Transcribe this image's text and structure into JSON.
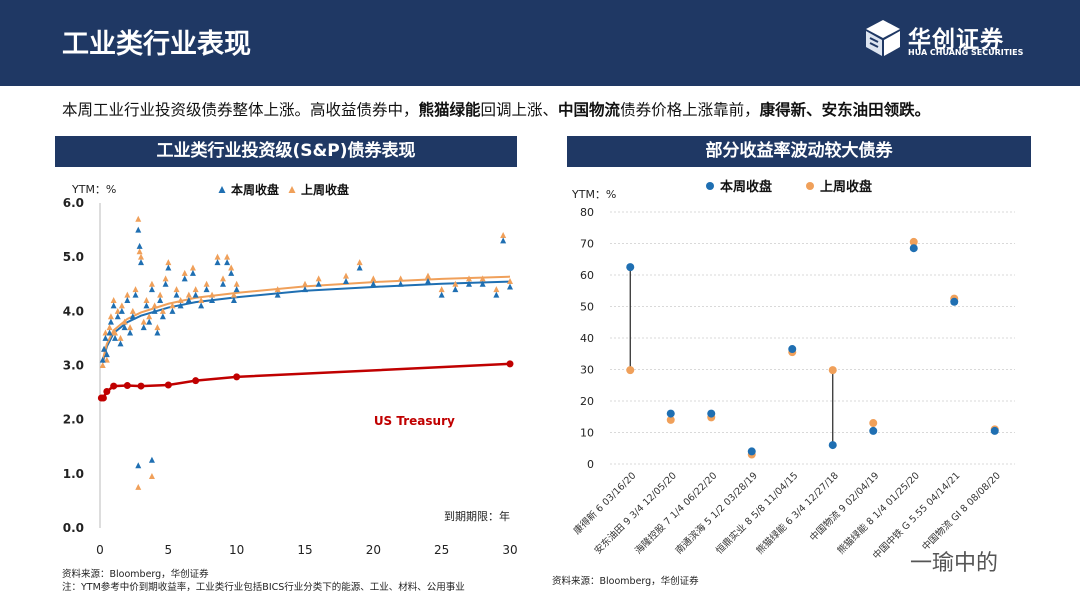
{
  "header": {
    "title": "工业类行业表现"
  },
  "logo": {
    "name_cn": "华创证券",
    "name_en": "HUA CHUANG SECURITIES"
  },
  "summary": {
    "p1": "本周工业行业投资级债券整体上涨。高收益债券中，",
    "b1": "熊猫绿能",
    "p2": "回调上涨、",
    "b2": "中国物流",
    "p3": "债券价格上涨靠前，",
    "b3": "康得新、安东油田领跌。"
  },
  "colors": {
    "header_bg": "#1f3864",
    "this_week": "#1f6fb2",
    "last_week": "#f0a05a",
    "treasury": "#c00000"
  },
  "chart_data": [
    {
      "type": "scatter",
      "title": "工业类行业投资级(S&P)债券表现",
      "ylabel": "YTM：%",
      "xlabel": "到期期限：年",
      "xlim": [
        0,
        30
      ],
      "ylim": [
        0,
        6
      ],
      "xticks": [
        "0",
        "5",
        "10",
        "15",
        "20",
        "25",
        "30"
      ],
      "yticks": [
        "0.0",
        "1.0",
        "2.0",
        "3.0",
        "4.0",
        "5.0",
        "6.0"
      ],
      "legend": [
        "本周收盘",
        "上周收盘"
      ],
      "annotation": "US Treasury",
      "series": [
        {
          "name": "本周收盘",
          "points": [
            [
              0.2,
              3.1
            ],
            [
              0.3,
              3.3
            ],
            [
              0.4,
              3.5
            ],
            [
              0.5,
              3.2
            ],
            [
              0.7,
              3.6
            ],
            [
              0.8,
              3.8
            ],
            [
              1.0,
              4.1
            ],
            [
              1.1,
              3.5
            ],
            [
              1.3,
              3.9
            ],
            [
              1.5,
              3.4
            ],
            [
              1.6,
              4.0
            ],
            [
              1.8,
              3.7
            ],
            [
              2.0,
              4.2
            ],
            [
              2.2,
              3.6
            ],
            [
              2.4,
              3.9
            ],
            [
              2.6,
              4.3
            ],
            [
              2.8,
              5.5
            ],
            [
              2.9,
              5.2
            ],
            [
              3.0,
              4.9
            ],
            [
              3.2,
              3.7
            ],
            [
              3.4,
              4.1
            ],
            [
              3.6,
              3.8
            ],
            [
              3.8,
              4.4
            ],
            [
              4.0,
              4.0
            ],
            [
              4.2,
              3.6
            ],
            [
              4.4,
              4.2
            ],
            [
              4.6,
              3.9
            ],
            [
              4.8,
              4.5
            ],
            [
              5.0,
              4.8
            ],
            [
              5.3,
              4.0
            ],
            [
              5.6,
              4.3
            ],
            [
              5.9,
              4.1
            ],
            [
              6.2,
              4.6
            ],
            [
              6.5,
              4.2
            ],
            [
              6.8,
              4.7
            ],
            [
              7.0,
              4.3
            ],
            [
              7.4,
              4.1
            ],
            [
              7.8,
              4.4
            ],
            [
              8.2,
              4.2
            ],
            [
              8.6,
              4.9
            ],
            [
              9.0,
              4.5
            ],
            [
              9.3,
              4.9
            ],
            [
              9.6,
              4.7
            ],
            [
              9.8,
              4.2
            ],
            [
              10.0,
              4.4
            ],
            [
              2.8,
              1.15
            ],
            [
              3.8,
              1.25
            ],
            [
              13,
              4.3
            ],
            [
              15,
              4.4
            ],
            [
              16,
              4.5
            ],
            [
              18,
              4.55
            ],
            [
              19,
              4.8
            ],
            [
              20,
              4.5
            ],
            [
              22,
              4.5
            ],
            [
              24,
              4.55
            ],
            [
              25,
              4.3
            ],
            [
              26,
              4.4
            ],
            [
              27,
              4.5
            ],
            [
              28,
              4.5
            ],
            [
              29,
              4.3
            ],
            [
              29.5,
              5.3
            ],
            [
              30,
              4.45
            ]
          ]
        },
        {
          "name": "上周收盘",
          "points": [
            [
              0.2,
              3.0
            ],
            [
              0.3,
              3.3
            ],
            [
              0.4,
              3.6
            ],
            [
              0.5,
              3.1
            ],
            [
              0.7,
              3.7
            ],
            [
              0.8,
              3.9
            ],
            [
              1.0,
              4.2
            ],
            [
              1.1,
              3.6
            ],
            [
              1.3,
              4.0
            ],
            [
              1.5,
              3.5
            ],
            [
              1.6,
              4.1
            ],
            [
              1.8,
              3.8
            ],
            [
              2.0,
              4.3
            ],
            [
              2.2,
              3.7
            ],
            [
              2.4,
              4.0
            ],
            [
              2.6,
              4.4
            ],
            [
              2.8,
              5.7
            ],
            [
              2.9,
              5.1
            ],
            [
              3.0,
              5.0
            ],
            [
              3.2,
              3.8
            ],
            [
              3.4,
              4.2
            ],
            [
              3.6,
              3.9
            ],
            [
              3.8,
              4.5
            ],
            [
              4.0,
              4.1
            ],
            [
              4.2,
              3.7
            ],
            [
              4.4,
              4.3
            ],
            [
              4.6,
              4.0
            ],
            [
              4.8,
              4.6
            ],
            [
              5.0,
              4.9
            ],
            [
              5.3,
              4.1
            ],
            [
              5.6,
              4.4
            ],
            [
              5.9,
              4.2
            ],
            [
              6.2,
              4.7
            ],
            [
              6.5,
              4.3
            ],
            [
              6.8,
              4.8
            ],
            [
              7.0,
              4.4
            ],
            [
              7.4,
              4.2
            ],
            [
              7.8,
              4.5
            ],
            [
              8.2,
              4.3
            ],
            [
              8.6,
              5.0
            ],
            [
              9.0,
              4.6
            ],
            [
              9.3,
              5.0
            ],
            [
              9.6,
              4.8
            ],
            [
              9.8,
              4.3
            ],
            [
              10.0,
              4.5
            ],
            [
              2.8,
              0.75
            ],
            [
              3.8,
              0.95
            ],
            [
              13,
              4.4
            ],
            [
              15,
              4.5
            ],
            [
              16,
              4.6
            ],
            [
              18,
              4.65
            ],
            [
              19,
              4.9
            ],
            [
              20,
              4.6
            ],
            [
              22,
              4.6
            ],
            [
              24,
              4.65
            ],
            [
              25,
              4.4
            ],
            [
              26,
              4.5
            ],
            [
              27,
              4.6
            ],
            [
              28,
              4.6
            ],
            [
              29,
              4.4
            ],
            [
              29.5,
              5.4
            ],
            [
              30,
              4.55
            ]
          ]
        },
        {
          "name": "US Treasury",
          "points": [
            [
              0.1,
              2.4
            ],
            [
              0.25,
              2.4
            ],
            [
              0.5,
              2.52
            ],
            [
              1,
              2.62
            ],
            [
              2,
              2.63
            ],
            [
              3,
              2.62
            ],
            [
              5,
              2.64
            ],
            [
              7,
              2.72
            ],
            [
              10,
              2.79
            ],
            [
              30,
              3.03
            ]
          ]
        }
      ],
      "trend_lines": [
        {
          "name": "本周收盘 趋势",
          "points": [
            [
              0.2,
              3.05
            ],
            [
              0.5,
              3.35
            ],
            [
              1,
              3.6
            ],
            [
              2,
              3.8
            ],
            [
              3,
              3.92
            ],
            [
              5,
              4.07
            ],
            [
              7,
              4.17
            ],
            [
              10,
              4.26
            ],
            [
              15,
              4.38
            ],
            [
              20,
              4.45
            ],
            [
              25,
              4.51
            ],
            [
              30,
              4.55
            ]
          ]
        },
        {
          "name": "上周收盘 趋势",
          "points": [
            [
              0.2,
              3.1
            ],
            [
              0.5,
              3.4
            ],
            [
              1,
              3.65
            ],
            [
              2,
              3.86
            ],
            [
              3,
              3.98
            ],
            [
              5,
              4.14
            ],
            [
              7,
              4.25
            ],
            [
              10,
              4.34
            ],
            [
              15,
              4.46
            ],
            [
              20,
              4.54
            ],
            [
              25,
              4.6
            ],
            [
              30,
              4.64
            ]
          ]
        }
      ]
    },
    {
      "type": "dot-plot",
      "title": "部分收益率波动较大债券",
      "ylabel": "YTM：%",
      "ylim": [
        0,
        80
      ],
      "yticks": [
        "0",
        "10",
        "20",
        "30",
        "40",
        "50",
        "60",
        "70",
        "80"
      ],
      "legend": [
        "本周收盘",
        "上周收盘"
      ],
      "categories": [
        "康得新 6 03/16/20",
        "安东油田 9 3/4 12/05/20",
        "海隆控股 7 1/4 06/22/20",
        "南通滨海 5 1/2 03/28/19",
        "恒鼎实业 8 5/8 11/04/15",
        "熊猫绿能 6 3/4 12/27/18",
        "中国物流 9 02/04/19",
        "熊猫绿能 8 1/4 01/25/20",
        "中国中铁 G 5.55 04/14/21",
        "中国物流 GI 8 08/08/20"
      ],
      "series": [
        {
          "name": "本周收盘",
          "values": [
            62.5,
            16,
            16,
            4,
            36.5,
            6,
            10.5,
            68.5,
            51.5,
            10.5
          ]
        },
        {
          "name": "上周收盘",
          "values": [
            29.8,
            14,
            14.8,
            3,
            35.5,
            29.8,
            13,
            70.5,
            52.5,
            11
          ]
        }
      ]
    }
  ],
  "footnotes": {
    "left_source": "资料来源：Bloomberg，华创证券",
    "left_note": "注：YTM参考中价到期收益率，工业类行业包括BICS行业分类下的能源、工业、材料、公用事业",
    "right_source": "资料来源：Bloomberg，华创证券"
  },
  "watermark": "一瑜中的"
}
